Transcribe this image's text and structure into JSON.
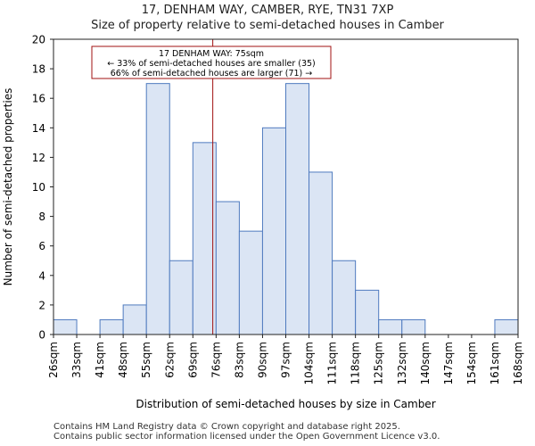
{
  "title_line1": "17, DENHAM WAY, CAMBER, RYE, TN31 7XP",
  "title_line2": "Size of property relative to semi-detached houses in Camber",
  "footer_line1": "Contains HM Land Registry data © Crown copyright and database right 2025.",
  "footer_line2": "Contains public sector information licensed under the Open Government Licence v3.0.",
  "colors": {
    "bar_fill": "#dbe5f4",
    "bar_edge": "#4f7bbf",
    "marker": "#a01010"
  },
  "chart_data": {
    "type": "bar",
    "title": "17, DENHAM WAY, CAMBER, RYE, TN31 7XP",
    "subtitle": "Size of property relative to semi-detached houses in Camber",
    "xlabel": "Distribution of semi-detached houses by size in Camber",
    "ylabel": "Number of semi-detached properties",
    "bin_edges": [
      26,
      33,
      41,
      48,
      55,
      62,
      69,
      76,
      83,
      90,
      97,
      104,
      111,
      118,
      125,
      132,
      140,
      147,
      154,
      161,
      168
    ],
    "x_tick_labels": [
      "26sqm",
      "33sqm",
      "41sqm",
      "48sqm",
      "55sqm",
      "62sqm",
      "69sqm",
      "76sqm",
      "83sqm",
      "90sqm",
      "97sqm",
      "104sqm",
      "111sqm",
      "118sqm",
      "125sqm",
      "132sqm",
      "140sqm",
      "147sqm",
      "154sqm",
      "161sqm",
      "168sqm"
    ],
    "values": [
      1,
      0,
      1,
      2,
      17,
      5,
      13,
      9,
      7,
      14,
      17,
      11,
      5,
      3,
      1,
      1,
      0,
      0,
      0,
      1
    ],
    "ylim": [
      0,
      20
    ],
    "y_ticks": [
      0,
      2,
      4,
      6,
      8,
      10,
      12,
      14,
      16,
      18,
      20
    ],
    "marker_value": 75,
    "annotation": {
      "line1": "17 DENHAM WAY: 75sqm",
      "line2": "← 33% of semi-detached houses are smaller (35)",
      "line3": "66% of semi-detached houses are larger (71) →"
    }
  }
}
